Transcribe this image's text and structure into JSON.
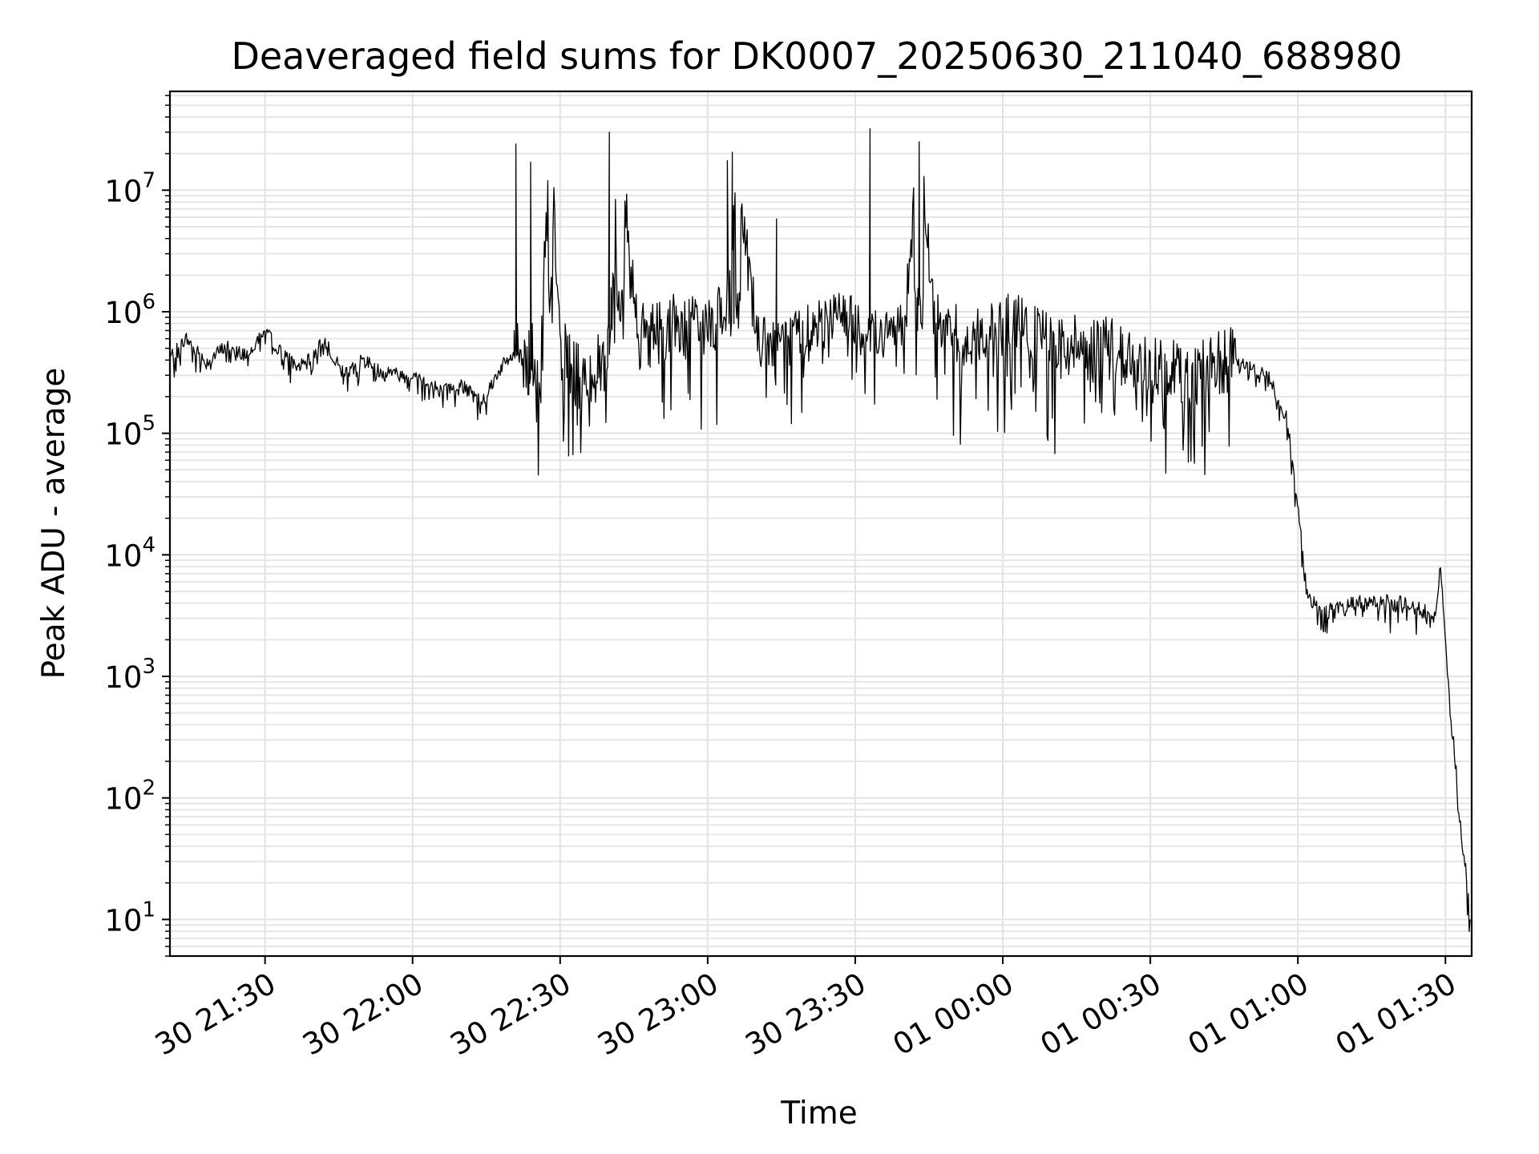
{
  "chart_data": {
    "type": "line",
    "title": "Deaveraged field sums for DK0007_20250630_211040_688980",
    "xlabel": "Time",
    "ylabel": "Peak ADU - average",
    "yscale": "log",
    "ylim": [
      5,
      65000000
    ],
    "xlim": [
      "2025-06-30 21:10:40",
      "2025-07-01 01:35:20"
    ],
    "grid": true,
    "line_color": "#000000",
    "x_ticks": [
      {
        "x": "2025-06-30 21:30",
        "label": "30 21:30"
      },
      {
        "x": "2025-06-30 22:00",
        "label": "30 22:00"
      },
      {
        "x": "2025-06-30 22:30",
        "label": "30 22:30"
      },
      {
        "x": "2025-06-30 23:00",
        "label": "30 23:00"
      },
      {
        "x": "2025-06-30 23:30",
        "label": "30 23:30"
      },
      {
        "x": "2025-07-01 00:00",
        "label": "01 00:00"
      },
      {
        "x": "2025-07-01 00:30",
        "label": "01 00:30"
      },
      {
        "x": "2025-07-01 01:00",
        "label": "01 01:00"
      },
      {
        "x": "2025-07-01 01:30",
        "label": "01 01:30"
      }
    ],
    "y_ticks": [
      {
        "value": 10,
        "base": "10",
        "exp": "1"
      },
      {
        "value": 100,
        "base": "10",
        "exp": "2"
      },
      {
        "value": 1000,
        "base": "10",
        "exp": "3"
      },
      {
        "value": 10000,
        "base": "10",
        "exp": "4"
      },
      {
        "value": 100000,
        "base": "10",
        "exp": "5"
      },
      {
        "value": 1000000,
        "base": "10",
        "exp": "6"
      },
      {
        "value": 10000000,
        "base": "10",
        "exp": "7"
      }
    ],
    "series": [
      {
        "x": [
          "2025-06-30 21:10:40",
          "2025-06-30 21:14",
          "2025-06-30 21:18",
          "2025-06-30 21:22",
          "2025-06-30 21:26",
          "2025-06-30 21:30",
          "2025-06-30 21:34",
          "2025-06-30 21:38",
          "2025-06-30 21:42",
          "2025-06-30 21:46",
          "2025-06-30 21:50",
          "2025-06-30 21:54",
          "2025-06-30 21:58",
          "2025-06-30 22:02",
          "2025-06-30 22:06",
          "2025-06-30 22:10",
          "2025-06-30 22:14",
          "2025-06-30 22:18",
          "2025-06-30 22:22",
          "2025-06-30 22:24",
          "2025-06-30 22:26",
          "2025-06-30 22:28",
          "2025-06-30 22:30",
          "2025-06-30 22:34",
          "2025-06-30 22:38",
          "2025-06-30 22:40",
          "2025-06-30 22:42",
          "2025-06-30 22:46",
          "2025-06-30 22:50",
          "2025-06-30 22:54",
          "2025-06-30 22:58",
          "2025-06-30 23:02",
          "2025-06-30 23:04",
          "2025-06-30 23:06",
          "2025-06-30 23:10",
          "2025-06-30 23:14",
          "2025-06-30 23:18",
          "2025-06-30 23:22",
          "2025-06-30 23:26",
          "2025-06-30 23:30",
          "2025-06-30 23:33",
          "2025-06-30 23:36",
          "2025-06-30 23:40",
          "2025-06-30 23:43",
          "2025-06-30 23:46",
          "2025-06-30 23:50",
          "2025-06-30 23:54",
          "2025-06-30 23:58",
          "2025-07-01 00:02",
          "2025-07-01 00:06",
          "2025-07-01 00:10",
          "2025-07-01 00:14",
          "2025-07-01 00:18",
          "2025-07-01 00:22",
          "2025-07-01 00:26",
          "2025-07-01 00:30",
          "2025-07-01 00:34",
          "2025-07-01 00:38",
          "2025-07-01 00:42",
          "2025-07-01 00:46",
          "2025-07-01 00:50",
          "2025-07-01 00:54",
          "2025-07-01 00:58",
          "2025-07-01 01:00",
          "2025-07-01 01:02",
          "2025-07-01 01:04",
          "2025-07-01 01:08",
          "2025-07-01 01:12",
          "2025-07-01 01:16",
          "2025-07-01 01:20",
          "2025-07-01 01:24",
          "2025-07-01 01:28",
          "2025-07-01 01:29",
          "2025-07-01 01:30",
          "2025-07-01 01:31",
          "2025-07-01 01:32",
          "2025-07-01 01:33",
          "2025-07-01 01:34",
          "2025-07-01 01:35"
        ],
        "values": [
          420000,
          600000,
          380000,
          520000,
          450000,
          700000,
          420000,
          350000,
          600000,
          300000,
          400000,
          320000,
          300000,
          280000,
          220000,
          250000,
          180000,
          350000,
          500000,
          300000,
          400000,
          24000000,
          500000,
          280000,
          350000,
          450000,
          30000000,
          600000,
          700000,
          800000,
          700000,
          900000,
          1100000,
          17500000,
          600000,
          500000,
          700000,
          800000,
          1000000,
          800000,
          700000,
          600000,
          900000,
          32000000,
          900000,
          700000,
          600000,
          700000,
          800000,
          600000,
          500000,
          550000,
          450000,
          500000,
          400000,
          350000,
          350000,
          300000,
          350000,
          400000,
          350000,
          300000,
          120000,
          25000,
          5000,
          3500,
          3500,
          4000,
          4200,
          4000,
          3800,
          3000,
          8500,
          2000,
          500,
          200,
          60,
          30,
          10
        ]
      }
    ],
    "spikes": [
      {
        "x": "2025-06-30 22:21",
        "value": 24000000
      },
      {
        "x": "2025-06-30 22:24",
        "value": 17000000
      },
      {
        "x": "2025-06-30 22:40",
        "value": 30000000
      },
      {
        "x": "2025-06-30 23:04",
        "value": 17500000
      },
      {
        "x": "2025-06-30 23:05",
        "value": 20500000
      },
      {
        "x": "2025-06-30 23:14",
        "value": 5800000
      },
      {
        "x": "2025-06-30 23:33",
        "value": 32000000
      },
      {
        "x": "2025-06-30 23:43",
        "value": 25000000
      }
    ]
  }
}
